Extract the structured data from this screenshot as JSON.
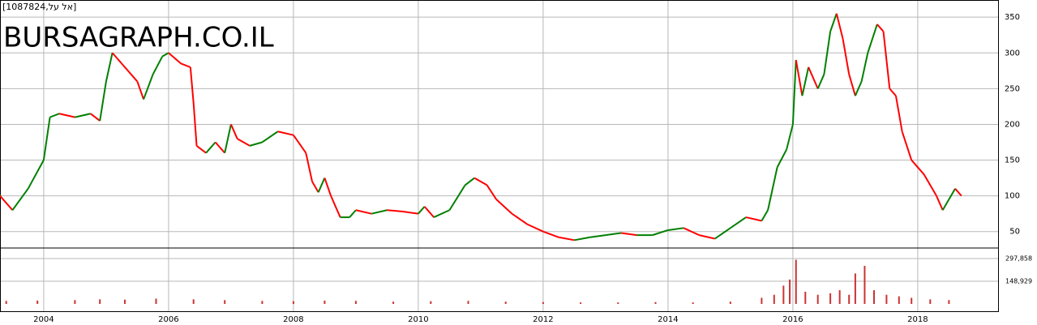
{
  "chart_data": [
    {
      "type": "price",
      "title": "[1087824,אל על]",
      "watermark": "BURSAGRAPH.CO.IL",
      "up_color": "#008000",
      "down_color": "#ff0000",
      "x": [
        2003.3,
        2003.5,
        2003.75,
        2004.0,
        2004.1,
        2004.25,
        2004.5,
        2004.75,
        2004.9,
        2005.0,
        2005.1,
        2005.25,
        2005.5,
        2005.6,
        2005.75,
        2005.9,
        2006.0,
        2006.2,
        2006.35,
        2006.4,
        2006.45,
        2006.6,
        2006.75,
        2006.9,
        2007.0,
        2007.1,
        2007.3,
        2007.5,
        2007.75,
        2008.0,
        2008.2,
        2008.3,
        2008.4,
        2008.5,
        2008.6,
        2008.75,
        2008.9,
        2009.0,
        2009.25,
        2009.5,
        2009.75,
        2010.0,
        2010.1,
        2010.25,
        2010.5,
        2010.75,
        2010.9,
        2011.1,
        2011.25,
        2011.5,
        2011.75,
        2012.0,
        2012.25,
        2012.5,
        2012.75,
        2013.0,
        2013.25,
        2013.5,
        2013.75,
        2014.0,
        2014.25,
        2014.5,
        2014.75,
        2015.0,
        2015.25,
        2015.5,
        2015.6,
        2015.75,
        2015.9,
        2016.0,
        2016.05,
        2016.15,
        2016.25,
        2016.4,
        2016.5,
        2016.6,
        2016.7,
        2016.8,
        2016.9,
        2017.0,
        2017.1,
        2017.2,
        2017.35,
        2017.45,
        2017.55,
        2017.65,
        2017.75,
        2017.9,
        2018.1,
        2018.3,
        2018.4,
        2018.5,
        2018.6,
        2018.7
      ],
      "values": [
        100,
        80,
        110,
        150,
        210,
        215,
        210,
        215,
        205,
        260,
        300,
        285,
        260,
        235,
        270,
        295,
        300,
        285,
        280,
        230,
        170,
        160,
        175,
        160,
        200,
        180,
        170,
        175,
        190,
        185,
        160,
        120,
        105,
        125,
        100,
        70,
        70,
        80,
        75,
        80,
        78,
        75,
        85,
        70,
        80,
        115,
        125,
        115,
        95,
        75,
        60,
        50,
        42,
        38,
        42,
        45,
        48,
        45,
        45,
        52,
        55,
        45,
        40,
        55,
        70,
        65,
        80,
        140,
        165,
        200,
        290,
        240,
        280,
        250,
        270,
        330,
        355,
        320,
        270,
        240,
        260,
        300,
        340,
        330,
        250,
        240,
        190,
        150,
        130,
        100,
        80,
        95,
        110,
        100
      ],
      "xlim": [
        2003.3,
        2019.3
      ],
      "ylim": [
        27,
        374
      ],
      "yticks": [
        50,
        100,
        150,
        200,
        250,
        300,
        350
      ],
      "xticks": [
        2004,
        2006,
        2008,
        2010,
        2012,
        2014,
        2016,
        2018
      ],
      "grid": true
    },
    {
      "type": "volume",
      "color": "#cc3333",
      "x": [
        2003.4,
        2003.9,
        2004.5,
        2004.9,
        2005.3,
        2005.8,
        2006.4,
        2006.9,
        2007.5,
        2008.0,
        2008.5,
        2009.0,
        2009.6,
        2010.2,
        2010.8,
        2011.4,
        2012.0,
        2012.6,
        2013.2,
        2013.8,
        2014.4,
        2015.0,
        2015.5,
        2015.7,
        2015.85,
        2015.95,
        2016.05,
        2016.2,
        2016.4,
        2016.6,
        2016.75,
        2016.9,
        2017.0,
        2017.15,
        2017.3,
        2017.5,
        2017.7,
        2017.9,
        2018.2,
        2018.5
      ],
      "values": [
        20000,
        22000,
        25000,
        30000,
        28000,
        35000,
        30000,
        25000,
        20000,
        18000,
        22000,
        20000,
        15000,
        18000,
        20000,
        15000,
        12000,
        10000,
        10000,
        12000,
        10000,
        15000,
        40000,
        60000,
        120000,
        160000,
        290000,
        80000,
        60000,
        70000,
        90000,
        60000,
        200000,
        250000,
        90000,
        60000,
        50000,
        40000,
        30000,
        25000
      ],
      "ylim": [
        0,
        367000
      ],
      "yticks": [
        {
          "value": 297858,
          "label": "297,858"
        },
        {
          "value": 148929,
          "label": "148,929"
        }
      ]
    }
  ]
}
